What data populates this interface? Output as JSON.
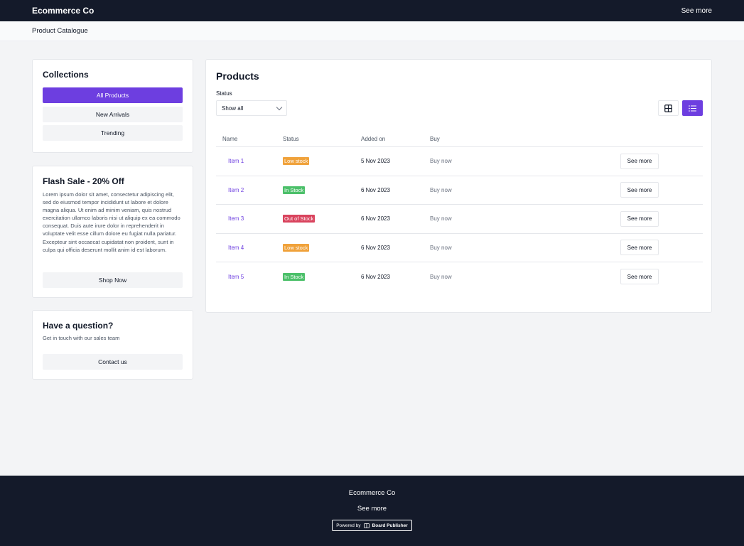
{
  "header": {
    "brand": "Ecommerce Co",
    "see_more": "See more"
  },
  "breadcrumb": {
    "label": "Product Catalogue"
  },
  "collections": {
    "title": "Collections",
    "items": [
      {
        "label": "All Products",
        "active": true
      },
      {
        "label": "New Arrivals",
        "active": false
      },
      {
        "label": "Trending",
        "active": false
      }
    ]
  },
  "flash_sale": {
    "title": "Flash Sale - 20% Off",
    "body": "Lorem ipsum dolor sit amet, consectetur adipiscing elit, sed do eiusmod tempor incididunt ut labore et dolore magna aliqua. Ut enim ad minim veniam, quis nostrud exercitation ullamco laboris nisi ut aliquip ex ea commodo consequat. Duis aute irure dolor in reprehenderit in voluptate velit esse cillum dolore eu fugiat nulla pariatur. Excepteur sint occaecat cupidatat non proident, sunt in culpa qui officia deserunt mollit anim id est laborum.",
    "button": "Shop Now"
  },
  "question": {
    "title": "Have a question?",
    "subtitle": "Get in touch with our sales team",
    "button": "Contact us"
  },
  "products": {
    "title": "Products",
    "filter": {
      "label": "Status",
      "value": "Show all"
    },
    "view_mode": "list",
    "columns": [
      "Name",
      "Status",
      "Added on",
      "Buy"
    ],
    "rows": [
      {
        "name": "Item 1",
        "status": "Low stock",
        "status_color": "#f0a23b",
        "added": "5 Nov 2023",
        "buy": "Buy now",
        "action": "See more"
      },
      {
        "name": "Item 2",
        "status": "In Stock",
        "status_color": "#4cc06a",
        "added": "6 Nov 2023",
        "buy": "Buy now",
        "action": "See more"
      },
      {
        "name": "Item 3",
        "status": "Out of Stock",
        "status_color": "#d9435d",
        "added": "6 Nov 2023",
        "buy": "Buy now",
        "action": "See more"
      },
      {
        "name": "Item 4",
        "status": "Low stock",
        "status_color": "#f0a23b",
        "added": "6 Nov 2023",
        "buy": "Buy now",
        "action": "See more"
      },
      {
        "name": "Item 5",
        "status": "In Stock",
        "status_color": "#4cc06a",
        "added": "6 Nov 2023",
        "buy": "Buy now",
        "action": "See more"
      }
    ]
  },
  "footer": {
    "brand": "Ecommerce Co",
    "see_more": "See more",
    "powered_prefix": "Powered by",
    "powered_name": "Board Publisher"
  },
  "colors": {
    "accent": "#6d3ee0",
    "dark": "#141a2a"
  }
}
